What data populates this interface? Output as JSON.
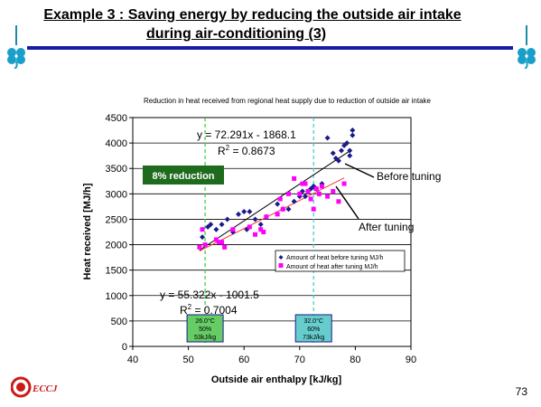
{
  "slide": {
    "title_line1": "Example 3 : Saving energy by reducing the outside air intake",
    "title_line2": "during air-conditioning (3)",
    "page_number": "73",
    "logo_text": "ECCJ",
    "accent_color": "#1a1aa8"
  },
  "chart_data": {
    "type": "scatter",
    "title": "Reduction in heat received from regional heat supply due to reduction of outside air intake",
    "xlabel": "Outside air enthalpy [kJ/kg]",
    "ylabel": "Heat received [MJ/h]",
    "xlim": [
      40,
      90
    ],
    "ylim": [
      0,
      4500
    ],
    "xticks": [
      "40",
      "50",
      "60",
      "70",
      "80",
      "90"
    ],
    "yticks": [
      "0",
      "500",
      "1000",
      "1500",
      "2000",
      "2500",
      "3000",
      "3500",
      "4000",
      "4500"
    ],
    "grid": "horizontal",
    "legend_position": "right",
    "series": [
      {
        "name": "Amount of heat before tuning MJ/h",
        "color": "#1a1a8c",
        "marker": "diamond",
        "x": [
          52.5,
          53.5,
          54,
          55,
          56,
          57,
          58,
          59,
          60,
          60.5,
          61,
          62,
          63,
          66,
          67,
          68,
          69,
          70,
          70.5,
          71,
          71.5,
          72,
          72.5,
          73,
          73.5,
          74,
          75,
          76,
          76.5,
          77,
          77.5,
          78,
          78.5,
          79,
          79,
          79.5,
          79.5
        ],
        "y": [
          2150,
          2350,
          2400,
          2300,
          2400,
          2500,
          2250,
          2600,
          2650,
          2300,
          2650,
          2500,
          2400,
          2800,
          2700,
          2700,
          2850,
          2950,
          3050,
          2950,
          3050,
          3100,
          3150,
          3100,
          3000,
          3200,
          4100,
          3800,
          3700,
          3650,
          3850,
          3950,
          4000,
          3750,
          3850,
          4150,
          4250
        ],
        "trendline": {
          "equation": "y = 72.291x - 1868.1",
          "r2_label": "R",
          "r2_value": "= 0.8673",
          "slope": 72.291,
          "intercept": -1868.1,
          "color": "#000000"
        }
      },
      {
        "name": "Amount of heat after tuning MJ/h",
        "color": "#ff00ff",
        "marker": "square",
        "x": [
          52,
          52.5,
          53,
          55,
          55.5,
          56,
          56.5,
          58,
          61,
          62,
          63,
          63.5,
          64,
          66,
          66.5,
          67,
          68,
          69,
          70,
          70.5,
          71,
          71.5,
          72,
          72.5,
          73,
          73.5,
          74,
          75,
          76,
          77,
          78
        ],
        "y": [
          1950,
          2300,
          2000,
          2100,
          2050,
          2050,
          1950,
          2300,
          2350,
          2200,
          2300,
          2250,
          2550,
          2600,
          2900,
          2700,
          3000,
          3300,
          3000,
          3200,
          3200,
          3050,
          2900,
          2700,
          3100,
          3000,
          3150,
          2950,
          3050,
          2850,
          3200
        ],
        "trendline": {
          "equation": "y = 55.322x - 1001.5",
          "r2_label": "R",
          "r2_value": "= 0.7004",
          "slope": 55.322,
          "intercept": -1001.5,
          "color": "#ff3333"
        }
      }
    ],
    "reference_lines": [
      {
        "x": 53,
        "color": "#33cc33",
        "box_lines": [
          "26.0°C",
          "50%",
          "53kJ/kg"
        ],
        "box_fill": "#66cc66"
      },
      {
        "x": 72.5,
        "color": "#33cccc",
        "box_lines": [
          "32.0°C",
          "60%",
          "73kJ/kg"
        ],
        "box_fill": "#66cccc"
      }
    ],
    "annotations": {
      "reduction_label": "8% reduction",
      "reduction_fill": "#1e6b1e",
      "before_label": "Before tuning",
      "after_label": "After tuning"
    }
  }
}
